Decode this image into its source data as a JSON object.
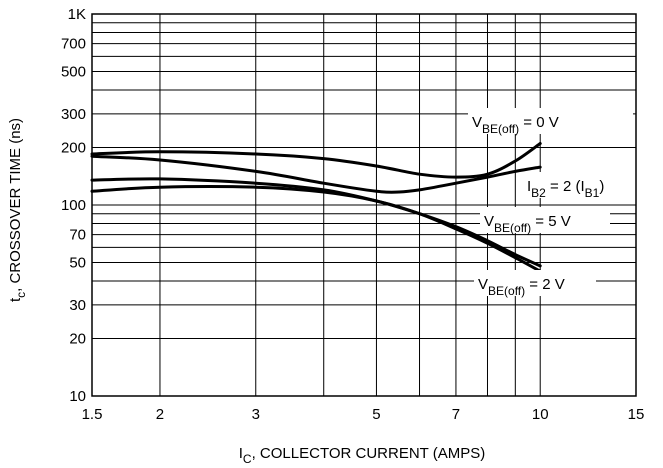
{
  "chart_data": {
    "type": "line",
    "x_scale": "log",
    "y_scale": "log",
    "xlim": [
      1.5,
      15
    ],
    "ylim": [
      10,
      1000
    ],
    "x_ticks": [
      1.5,
      2,
      3,
      5,
      7,
      10,
      15
    ],
    "x_tick_labels": [
      "1.5",
      "2",
      "3",
      "5",
      "7",
      "10",
      "15"
    ],
    "y_ticks": [
      10,
      20,
      30,
      50,
      70,
      100,
      200,
      300,
      500,
      700,
      1000
    ],
    "y_tick_labels": [
      "10",
      "20",
      "30",
      "50",
      "70",
      "100",
      "200",
      "300",
      "500",
      "700",
      "1K"
    ],
    "grid": true,
    "xlabel": {
      "main": "I",
      "sub": "C",
      "rest": ", COLLECTOR CURRENT (AMPS)"
    },
    "ylabel": {
      "main": "t",
      "sub": "c",
      "rest": ", CROSSOVER TIME (ns)"
    },
    "annotations": [
      {
        "id": "vbe0",
        "pre": "V",
        "sub": "BE(off)",
        "post": " = 0 V"
      },
      {
        "id": "ib2",
        "pre": "I",
        "sub": "B2",
        "post": " = 2 (I",
        "sub2": "B1",
        "post2": ")"
      },
      {
        "id": "vbe5",
        "pre": "V",
        "sub": "BE(off)",
        "post": " = 5 V"
      },
      {
        "id": "vbe2",
        "pre": "V",
        "sub": "BE(off)",
        "post": " = 2 V"
      }
    ],
    "series": [
      {
        "x": [
          1.5,
          2,
          3,
          4,
          5,
          6,
          7,
          8,
          9,
          10
        ],
        "y": [
          185,
          190,
          185,
          175,
          160,
          145,
          140,
          145,
          170,
          210
        ]
      },
      {
        "x": [
          1.5,
          2,
          3,
          4,
          5,
          5.5,
          6,
          7,
          8,
          9,
          10
        ],
        "y": [
          180,
          172,
          150,
          130,
          118,
          117,
          120,
          130,
          140,
          150,
          158
        ]
      },
      {
        "x": [
          1.5,
          2,
          3,
          4,
          5,
          6,
          7,
          8,
          9,
          10
        ],
        "y": [
          135,
          137,
          130,
          120,
          105,
          90,
          77,
          65,
          55,
          48
        ]
      },
      {
        "x": [
          1.5,
          2,
          3,
          4,
          5,
          6,
          7,
          8,
          9,
          10
        ],
        "y": [
          118,
          124,
          124,
          117,
          105,
          90,
          75,
          63,
          53,
          45
        ]
      }
    ]
  }
}
